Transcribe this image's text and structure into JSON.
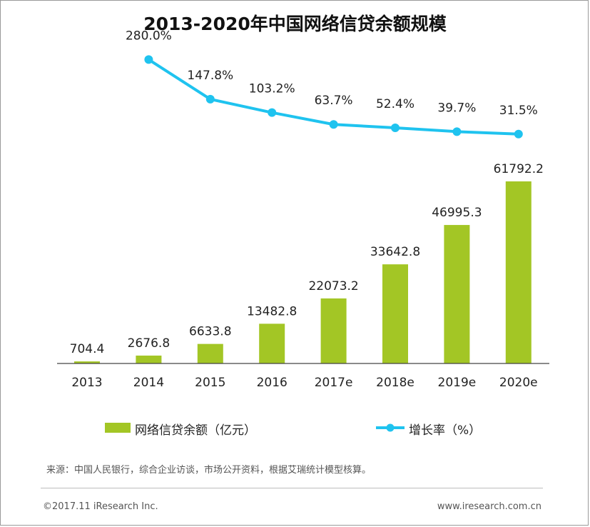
{
  "title": "2013-2020年中国网络信贷余额规模",
  "chart_data": {
    "type": "bar",
    "title": "2013-2020年中国网络信贷余额规模",
    "categories": [
      "2013",
      "2014",
      "2015",
      "2016",
      "2017e",
      "2018e",
      "2019e",
      "2020e"
    ],
    "series": [
      {
        "name": "网络信贷余额（亿元）",
        "type": "bar",
        "values": [
          704.4,
          2676.8,
          6633.8,
          13482.8,
          22073.2,
          33642.8,
          46995.3,
          61792.2
        ],
        "labels": [
          "704.4",
          "2676.8",
          "6633.8",
          "13482.8",
          "22073.2",
          "33642.8",
          "46995.3",
          "61792.2"
        ]
      },
      {
        "name": "增长率（%）",
        "type": "line",
        "values": [
          null,
          280.0,
          147.8,
          103.2,
          63.7,
          52.4,
          39.7,
          31.5
        ],
        "labels": [
          "",
          "280.0%",
          "147.8%",
          "103.2%",
          "63.7%",
          "52.4%",
          "39.7%",
          "31.5%"
        ]
      }
    ],
    "ylim": [
      0,
      65000
    ],
    "line_ylim": [
      0,
      300
    ],
    "grid": false,
    "legend_position": "bottom"
  },
  "colors": {
    "bar": "#a3c625",
    "line": "#1fc3ef",
    "axis": "#444444"
  },
  "legend": {
    "bar_label": "网络信贷余额（亿元）",
    "line_label": "增长率（%）"
  },
  "footer": {
    "source": "来源：中国人民银行，综合企业访谈，市场公开资料，根据艾瑞统计模型核算。",
    "copyright": "©2017.11 iResearch Inc.",
    "website": "www.iresearch.com.cn"
  }
}
